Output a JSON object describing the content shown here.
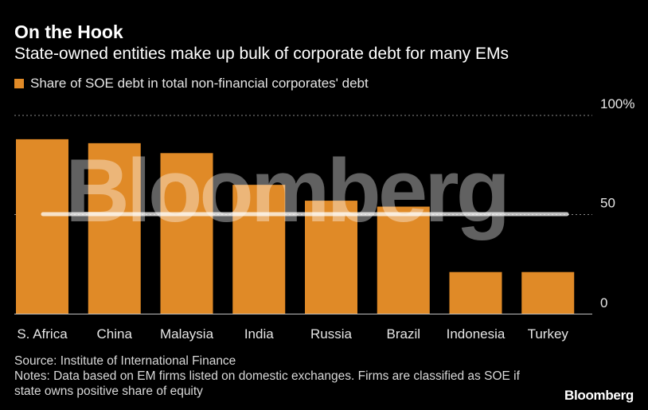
{
  "header": {
    "title": "On the Hook",
    "subtitle": "State-owned entities make up bulk of corporate debt for many EMs"
  },
  "legend": {
    "label": "Share of SOE debt in total non-financial corporates' debt"
  },
  "colors": {
    "bar": "#e08a27",
    "grid": "#8a8a8a",
    "background": "#000000"
  },
  "chart_data": {
    "type": "bar",
    "categories": [
      "S. Africa",
      "China",
      "Malaysia",
      "India",
      "Russia",
      "Brazil",
      "Indonesia",
      "Turkey"
    ],
    "series": [
      {
        "name": "Share of SOE debt in total non-financial corporates' debt",
        "values": [
          88,
          86,
          81,
          65,
          57,
          54,
          21,
          21
        ]
      }
    ],
    "ylim": [
      0,
      100
    ],
    "yticks": [
      0,
      50,
      100
    ],
    "ytick_labels": [
      "0",
      "50",
      "100%"
    ],
    "y_axis_position": "right",
    "grid": "dotted horizontal",
    "legend_position": "top-left"
  },
  "footer": {
    "source": "Source: Institute of International Finance",
    "notes": "Notes: Data based on EM firms listed on domestic exchanges. Firms are classified as SOE if state owns positive share of equity",
    "brand": "Bloomberg"
  },
  "watermark": "Bloomberg"
}
